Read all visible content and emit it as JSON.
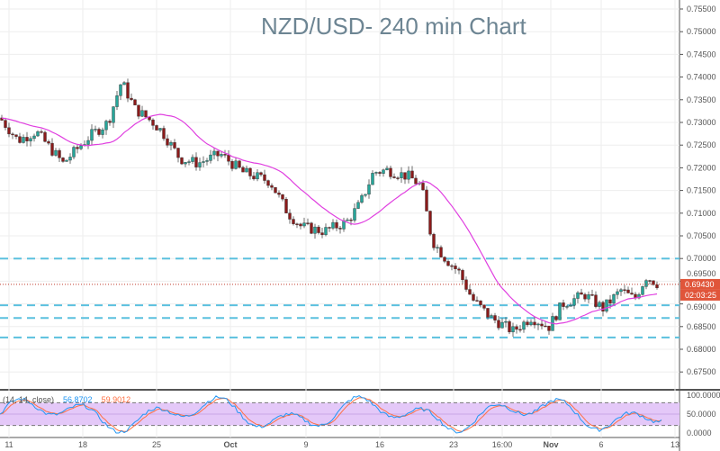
{
  "chart_data": {
    "type": "candlestick",
    "title": "NZD/USD- 240 min Chart",
    "y_ticks": [
      "0.75500",
      "0.75000",
      "0.74500",
      "0.74000",
      "0.73500",
      "0.73000",
      "0.72500",
      "0.72000",
      "0.71500",
      "0.71000",
      "0.70500",
      "0.70000",
      "0.69500",
      "0.69000",
      "0.68500",
      "0.68000",
      "0.67500"
    ],
    "ylim": [
      0.675,
      0.755
    ],
    "x_ticks": [
      "11",
      "18",
      "25",
      "Oct",
      "9",
      "16",
      "23",
      "16:00",
      "Nov",
      "6",
      "13"
    ],
    "last_price": "0.69430",
    "countdown": "02:03:25",
    "horizontal_levels": [
      0.7,
      0.6897,
      0.6869,
      0.6826
    ],
    "moving_average_color": "#e040e0",
    "level_color": "#5bc0de",
    "up_color": "#26a69a",
    "down_color": "#8b1a1a",
    "oscillator": {
      "label": "(14, 14, close)",
      "k_value": "56.8702",
      "d_value": "59.9012",
      "k_color": "#2196f3",
      "d_color": "#ff7043",
      "band_color": "#e4c8f8",
      "y_ticks": [
        "100.0000",
        "50.0000",
        "0.0000"
      ],
      "upper": 80,
      "lower": 20
    }
  }
}
